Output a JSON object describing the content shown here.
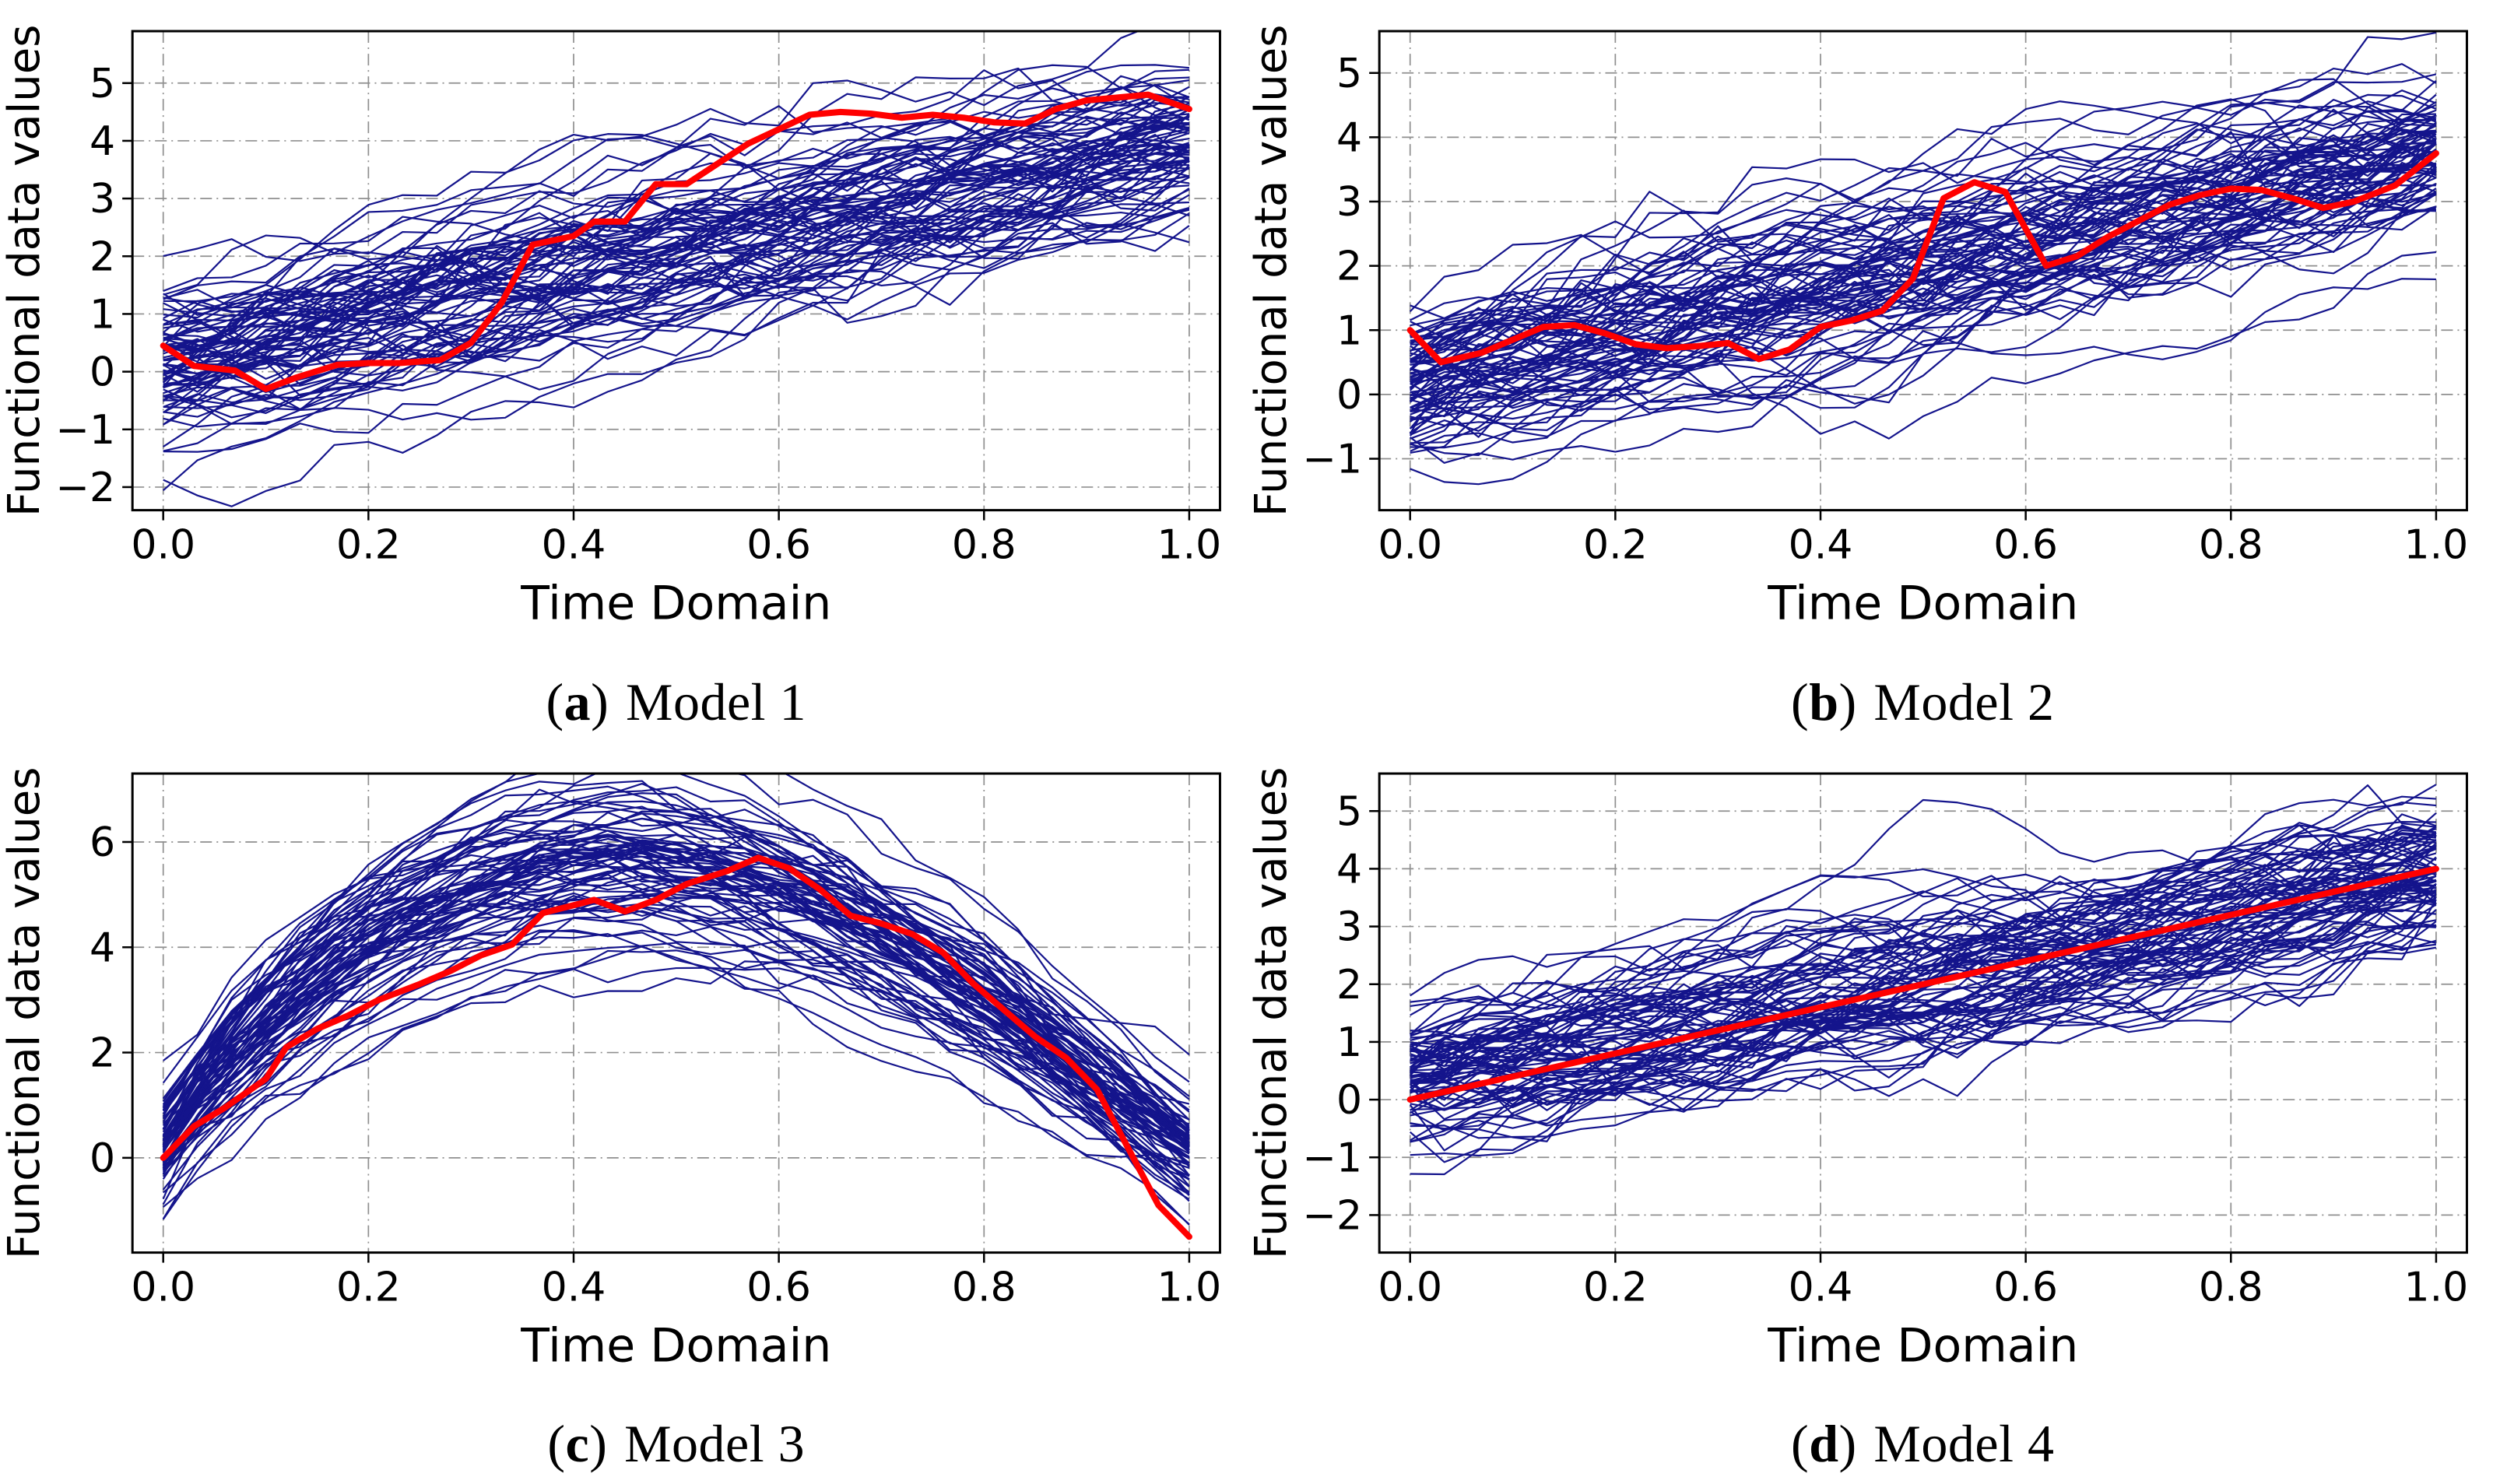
{
  "figure": {
    "background": "#ffffff",
    "axis_color": "#000000",
    "grid_color": "#8f8f8f",
    "ensemble_color": "#14148C",
    "outlier_color": "#FF0000",
    "xlabel": "Time Domain",
    "ylabel": "Functional data values"
  },
  "captions": [
    {
      "open": "(",
      "letter": "a",
      "close": ")",
      "label": "Model 1"
    },
    {
      "open": "(",
      "letter": "b",
      "close": ")",
      "label": "Model 2"
    },
    {
      "open": "(",
      "letter": "c",
      "close": ")",
      "label": "Model 3"
    },
    {
      "open": "(",
      "letter": "d",
      "close": ")",
      "label": "Model 4"
    }
  ],
  "chart_data": [
    {
      "id": "model-1",
      "type": "line",
      "xlabel": "Time Domain",
      "ylabel": "Functional data values",
      "xlim": [
        -0.03,
        1.03
      ],
      "ylim": [
        -2.4,
        5.9
      ],
      "x_ticks": [
        0,
        0.2,
        0.4,
        0.6,
        0.8,
        1.0
      ],
      "x_tick_labels": [
        "0.0",
        "0.2",
        "0.4",
        "0.6",
        "0.8",
        "1.0"
      ],
      "y_ticks": [
        -2,
        -1,
        0,
        1,
        2,
        3,
        4,
        5
      ],
      "y_tick_labels": [
        "−2",
        "−1",
        "0",
        "1",
        "2",
        "3",
        "4",
        "5"
      ],
      "grid": true,
      "series": [
        {
          "name": "ensemble",
          "color": "#14148C",
          "width": 2.2,
          "generated": true,
          "model": "linear",
          "n_curves": 85,
          "n_points": 31,
          "start_mean": 0.25,
          "start_sd": 0.75,
          "end_mean": 3.85,
          "end_sd": 0.7,
          "wiggle_sd": 0.23,
          "seed": 101
        },
        {
          "name": "outlier",
          "color": "#FF0000",
          "width": 8,
          "points": [
            [
              0,
              0.45
            ],
            [
              0.03,
              0.1
            ],
            [
              0.07,
              0.02
            ],
            [
              0.1,
              -0.3
            ],
            [
              0.13,
              -0.1
            ],
            [
              0.17,
              0.12
            ],
            [
              0.2,
              0.15
            ],
            [
              0.23,
              0.15
            ],
            [
              0.27,
              0.2
            ],
            [
              0.3,
              0.5
            ],
            [
              0.33,
              1.2
            ],
            [
              0.36,
              2.2
            ],
            [
              0.4,
              2.35
            ],
            [
              0.42,
              2.6
            ],
            [
              0.45,
              2.6
            ],
            [
              0.48,
              3.25
            ],
            [
              0.51,
              3.25
            ],
            [
              0.54,
              3.6
            ],
            [
              0.57,
              3.95
            ],
            [
              0.6,
              4.2
            ],
            [
              0.63,
              4.45
            ],
            [
              0.66,
              4.5
            ],
            [
              0.69,
              4.47
            ],
            [
              0.72,
              4.4
            ],
            [
              0.75,
              4.45
            ],
            [
              0.78,
              4.4
            ],
            [
              0.81,
              4.32
            ],
            [
              0.84,
              4.3
            ],
            [
              0.87,
              4.55
            ],
            [
              0.9,
              4.7
            ],
            [
              0.93,
              4.75
            ],
            [
              0.96,
              4.8
            ],
            [
              1,
              4.55
            ]
          ]
        }
      ]
    },
    {
      "id": "model-2",
      "type": "line",
      "xlabel": "Time Domain",
      "ylabel": "Functional data values",
      "xlim": [
        -0.03,
        1.03
      ],
      "ylim": [
        -1.8,
        5.65
      ],
      "x_ticks": [
        0,
        0.2,
        0.4,
        0.6,
        0.8,
        1.0
      ],
      "x_tick_labels": [
        "0.0",
        "0.2",
        "0.4",
        "0.6",
        "0.8",
        "1.0"
      ],
      "y_ticks": [
        -1,
        0,
        1,
        2,
        3,
        4,
        5
      ],
      "y_tick_labels": [
        "−1",
        "0",
        "1",
        "2",
        "3",
        "4",
        "5"
      ],
      "grid": true,
      "series": [
        {
          "name": "ensemble",
          "color": "#14148C",
          "width": 2.2,
          "generated": true,
          "model": "linear",
          "n_curves": 85,
          "n_points": 31,
          "start_mean": 0.2,
          "start_sd": 0.65,
          "end_mean": 3.9,
          "end_sd": 0.6,
          "wiggle_sd": 0.23,
          "seed": 207
        },
        {
          "name": "outlier",
          "color": "#FF0000",
          "width": 8,
          "points": [
            [
              0,
              1
            ],
            [
              0.03,
              0.5
            ],
            [
              0.07,
              0.65
            ],
            [
              0.1,
              0.85
            ],
            [
              0.13,
              1.05
            ],
            [
              0.16,
              1.08
            ],
            [
              0.19,
              0.95
            ],
            [
              0.22,
              0.78
            ],
            [
              0.25,
              0.72
            ],
            [
              0.28,
              0.75
            ],
            [
              0.31,
              0.8
            ],
            [
              0.34,
              0.55
            ],
            [
              0.37,
              0.7
            ],
            [
              0.4,
              1.05
            ],
            [
              0.43,
              1.15
            ],
            [
              0.46,
              1.3
            ],
            [
              0.49,
              1.8
            ],
            [
              0.52,
              3.05
            ],
            [
              0.55,
              3.3
            ],
            [
              0.58,
              3.15
            ],
            [
              0.62,
              2
            ],
            [
              0.65,
              2.15
            ],
            [
              0.68,
              2.45
            ],
            [
              0.71,
              2.7
            ],
            [
              0.74,
              2.95
            ],
            [
              0.77,
              3.1
            ],
            [
              0.8,
              3.2
            ],
            [
              0.83,
              3.18
            ],
            [
              0.86,
              3.05
            ],
            [
              0.89,
              2.9
            ],
            [
              0.92,
              3
            ],
            [
              0.96,
              3.25
            ],
            [
              1,
              3.75
            ]
          ]
        }
      ]
    },
    {
      "id": "model-3",
      "type": "line",
      "xlabel": "Time Domain",
      "ylabel": "Functional data values",
      "xlim": [
        -0.03,
        1.03
      ],
      "ylim": [
        -1.8,
        7.3
      ],
      "x_ticks": [
        0,
        0.2,
        0.4,
        0.6,
        0.8,
        1.0
      ],
      "x_tick_labels": [
        "0.0",
        "0.2",
        "0.4",
        "0.6",
        "0.8",
        "1.0"
      ],
      "y_ticks": [
        0,
        2,
        4,
        6
      ],
      "y_tick_labels": [
        "0",
        "2",
        "4",
        "6"
      ],
      "grid": true,
      "series": [
        {
          "name": "ensemble",
          "color": "#14148C",
          "width": 2.2,
          "generated": true,
          "model": "hump",
          "n_curves": 80,
          "n_points": 31,
          "start_mean": 0.2,
          "start_sd": 0.6,
          "end_mean": 0.1,
          "end_sd": 0.55,
          "amp_mean": 5.5,
          "amp_sd": 0.5,
          "peak_power": 0.85,
          "wiggle_sd": 0.17,
          "seed": 303
        },
        {
          "name": "outlier",
          "color": "#FF0000",
          "width": 8,
          "points": [
            [
              0,
              0
            ],
            [
              0.03,
              0.6
            ],
            [
              0.06,
              0.95
            ],
            [
              0.1,
              1.5
            ],
            [
              0.12,
              2.1
            ],
            [
              0.15,
              2.45
            ],
            [
              0.18,
              2.7
            ],
            [
              0.21,
              3
            ],
            [
              0.25,
              3.3
            ],
            [
              0.28,
              3.55
            ],
            [
              0.31,
              3.85
            ],
            [
              0.34,
              4.05
            ],
            [
              0.37,
              4.65
            ],
            [
              0.4,
              4.8
            ],
            [
              0.42,
              4.9
            ],
            [
              0.45,
              4.68
            ],
            [
              0.48,
              4.9
            ],
            [
              0.51,
              5.2
            ],
            [
              0.55,
              5.45
            ],
            [
              0.58,
              5.7
            ],
            [
              0.61,
              5.5
            ],
            [
              0.64,
              5.1
            ],
            [
              0.67,
              4.6
            ],
            [
              0.7,
              4.45
            ],
            [
              0.73,
              4.25
            ],
            [
              0.76,
              3.9
            ],
            [
              0.79,
              3.3
            ],
            [
              0.82,
              2.8
            ],
            [
              0.85,
              2.3
            ],
            [
              0.88,
              1.9
            ],
            [
              0.91,
              1.3
            ],
            [
              0.94,
              0.2
            ],
            [
              0.97,
              -0.9
            ],
            [
              1,
              -1.5
            ]
          ]
        }
      ]
    },
    {
      "id": "model-4",
      "type": "line",
      "xlabel": "Time Domain",
      "ylabel": "Functional data values",
      "xlim": [
        -0.03,
        1.03
      ],
      "ylim": [
        -2.65,
        5.65
      ],
      "x_ticks": [
        0,
        0.2,
        0.4,
        0.6,
        0.8,
        1.0
      ],
      "x_tick_labels": [
        "0.0",
        "0.2",
        "0.4",
        "0.6",
        "0.8",
        "1.0"
      ],
      "y_ticks": [
        -2,
        -1,
        0,
        1,
        2,
        3,
        4,
        5
      ],
      "y_tick_labels": [
        "−2",
        "−1",
        "0",
        "1",
        "2",
        "3",
        "4",
        "5"
      ],
      "grid": true,
      "series": [
        {
          "name": "ensemble",
          "color": "#14148C",
          "width": 2.2,
          "generated": true,
          "model": "linear",
          "n_curves": 85,
          "n_points": 31,
          "start_mean": 0.3,
          "start_sd": 0.6,
          "end_mean": 3.9,
          "end_sd": 0.6,
          "wiggle_sd": 0.24,
          "seed": 404
        },
        {
          "name": "outlier",
          "color": "#FF0000",
          "width": 8,
          "points": [
            [
              0,
              0
            ],
            [
              0.1,
              0.4
            ],
            [
              0.2,
              0.8
            ],
            [
              0.3,
              1.2
            ],
            [
              0.4,
              1.6
            ],
            [
              0.5,
              2
            ],
            [
              0.6,
              2.4
            ],
            [
              0.7,
              2.8
            ],
            [
              0.8,
              3.2
            ],
            [
              0.9,
              3.6
            ],
            [
              1,
              4
            ]
          ]
        }
      ]
    }
  ]
}
